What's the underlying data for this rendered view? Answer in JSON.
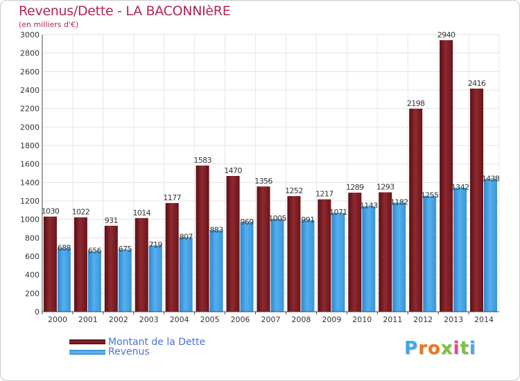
{
  "title": "Revenus/Dette - LA BACONNIèRE",
  "subtitle": "(en milliers d'€)",
  "brand": "Proxiti",
  "colors": {
    "title": "#b2245a",
    "debt": "#7a1a22",
    "revenue": "#3f9ee0",
    "legend_text": "#4b70d8"
  },
  "chart_data": {
    "type": "bar",
    "title": "Revenus/Dette - LA BACONNIèRE",
    "ylabel": "(en milliers d'€)",
    "xlabel": "",
    "ylim": [
      0,
      3000
    ],
    "yticks": [
      0,
      200,
      400,
      600,
      800,
      1000,
      1200,
      1400,
      1600,
      1800,
      2000,
      2200,
      2400,
      2600,
      2800,
      3000
    ],
    "grid": true,
    "categories": [
      "2000",
      "2001",
      "2002",
      "2003",
      "2004",
      "2005",
      "2006",
      "2007",
      "2008",
      "2009",
      "2010",
      "2011",
      "2012",
      "2013",
      "2014"
    ],
    "series": [
      {
        "name": "Montant de la Dette",
        "values": [
          1030,
          1022,
          931,
          1014,
          1177,
          1583,
          1470,
          1356,
          1252,
          1217,
          1289,
          1293,
          2198,
          2940,
          2416
        ]
      },
      {
        "name": "Revenus",
        "values": [
          688,
          656,
          675,
          719,
          807,
          883,
          969,
          1005,
          991,
          1071,
          1143,
          1182,
          1255,
          1342,
          1438
        ]
      }
    ],
    "legend_position": "bottom-left"
  }
}
